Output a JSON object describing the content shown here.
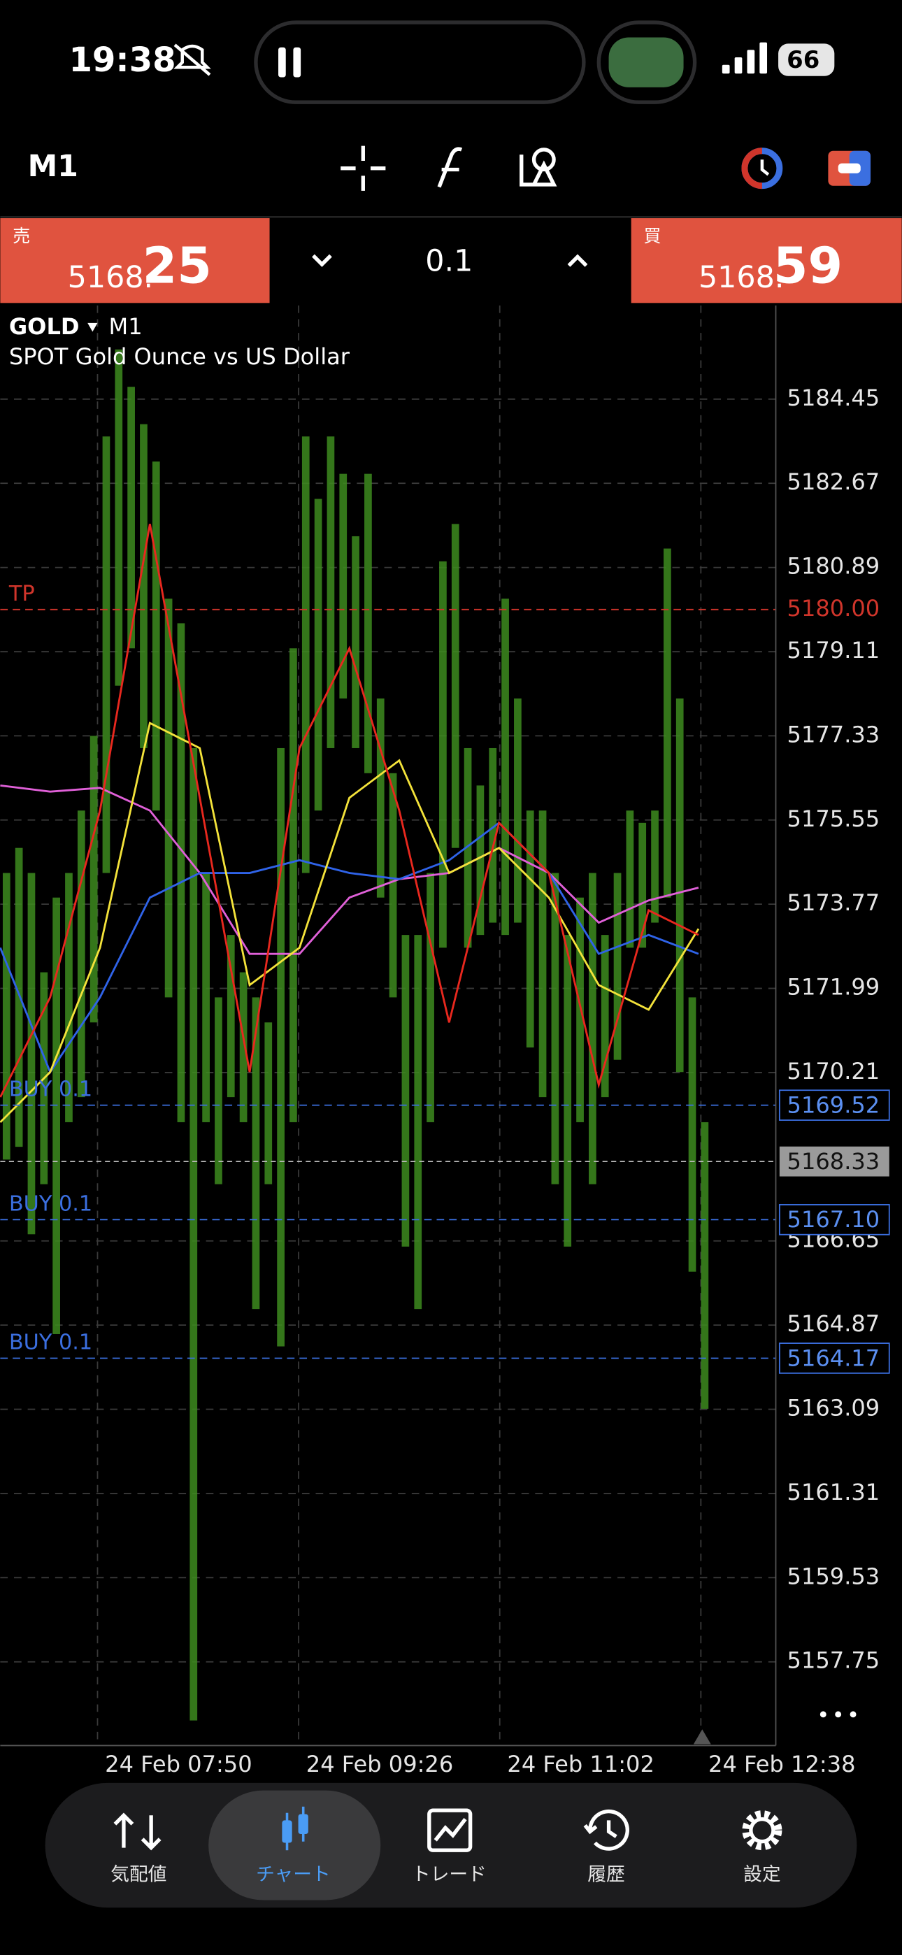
{
  "status_bar": {
    "time": "19:38",
    "battery": "66"
  },
  "toolbar": {
    "timeframe": "M1"
  },
  "trade_panel": {
    "sell_label": "売",
    "sell_price": [
      "5168.",
      "25"
    ],
    "volume": "0.1",
    "buy_label": "買",
    "buy_price": [
      "5168.",
      "59"
    ]
  },
  "chart": {
    "symbol": "GOLD",
    "timeframe": "M1",
    "description": "SPOT Gold Ounce vs US Dollar",
    "ylim": [
      5155.98,
      5186.43
    ],
    "yticks": [
      5184.45,
      5182.67,
      5180.89,
      5179.11,
      5177.33,
      5175.55,
      5173.77,
      5171.99,
      5170.21,
      5166.65,
      5164.87,
      5163.09,
      5161.31,
      5159.53,
      5157.75
    ],
    "xticks": [
      "24 Feb 07:50",
      "24 Feb 09:26",
      "24 Feb 11:02",
      "24 Feb 12:38"
    ],
    "bar_color": "#3d8b1e",
    "high": [
      5174.43,
      5174.96,
      5174.43,
      5172.33,
      5173.91,
      5174.43,
      5175.75,
      5177.33,
      5183.66,
      5185.5,
      5184.71,
      5183.92,
      5183.13,
      5180.23,
      5179.71,
      5177.07,
      5174.43,
      5171.8,
      5173.12,
      5172.33,
      5171.8,
      5171.27,
      5177.07,
      5179.18,
      5183.66,
      5182.34,
      5183.66,
      5182.87,
      5181.55,
      5182.87,
      5178.12,
      5176.54,
      5173.12,
      5173.12,
      5174.43,
      5181.02,
      5181.81,
      5177.07,
      5176.28,
      5177.07,
      5180.23,
      5178.12,
      5175.75,
      5175.75,
      5174.43,
      5173.12,
      5173.91,
      5174.43,
      5173.12,
      5174.43,
      5175.75,
      5175.49,
      5175.75,
      5181.29,
      5178.12,
      5171.8,
      5169.16
    ],
    "low": [
      5168.37,
      5168.64,
      5166.79,
      5167.85,
      5164.68,
      5169.16,
      5169.69,
      5171.27,
      5174.43,
      5178.39,
      5179.18,
      5177.07,
      5175.75,
      5171.8,
      5169.16,
      5156.51,
      5169.16,
      5167.85,
      5169.69,
      5169.16,
      5165.21,
      5167.85,
      5164.42,
      5169.16,
      5174.43,
      5175.75,
      5177.07,
      5178.12,
      5177.07,
      5176.54,
      5173.91,
      5171.8,
      5166.53,
      5165.21,
      5169.16,
      5172.85,
      5174.96,
      5172.85,
      5173.12,
      5173.38,
      5173.12,
      5173.38,
      5170.74,
      5169.69,
      5167.85,
      5166.53,
      5169.16,
      5167.85,
      5169.69,
      5170.48,
      5172.85,
      5172.85,
      5173.38,
      5173.91,
      5170.22,
      5166.0,
      5163.1
    ],
    "lines": [
      {
        "color": "#e060d8",
        "values": [
          5176.28,
          5176.15,
          5176.23,
          5175.75,
          5174.43,
          5172.72,
          5172.72,
          5173.91,
          5174.3,
          5174.43,
          5174.96,
          5174.43,
          5173.38,
          5173.85,
          5174.12
        ]
      },
      {
        "color": "#2f63e8",
        "values": [
          5172.85,
          5170.22,
          5171.8,
          5173.91,
          5174.43,
          5174.43,
          5174.7,
          5174.43,
          5174.3,
          5174.7,
          5175.49,
          5174.43,
          5172.72,
          5173.12,
          5172.72
        ]
      },
      {
        "color": "#f3e23a",
        "values": [
          5169.16,
          5170.22,
          5172.85,
          5177.6,
          5177.07,
          5172.06,
          5172.85,
          5176.02,
          5176.81,
          5174.43,
          5174.96,
          5173.91,
          5172.06,
          5171.54,
          5173.25
        ]
      },
      {
        "color": "#e8281e",
        "values": [
          5169.69,
          5171.8,
          5175.75,
          5181.81,
          5176.02,
          5170.22,
          5177.07,
          5179.18,
          5175.75,
          5171.27,
          5175.49,
          5174.43,
          5169.95,
          5173.64,
          5173.12
        ]
      }
    ],
    "take_profit": {
      "label": "TP",
      "price": {
        "value": 5180,
        "label": "5180.00"
      },
      "color": "#d0352b"
    },
    "orders": [
      {
        "label": "BUY 0.1",
        "price": 5169.52
      },
      {
        "label": "BUY 0.1",
        "price": {
          "value": 5167.1,
          "label": "5167.10"
        }
      },
      {
        "label": "BUY 0.1",
        "price": 5164.17
      }
    ],
    "order_color": "#3b6fe0",
    "current_price": 5168.33
  },
  "tab_bar": {
    "tabs": [
      "気配値",
      "チャート",
      "トレード",
      "履歴",
      "設定"
    ],
    "active": 1
  }
}
